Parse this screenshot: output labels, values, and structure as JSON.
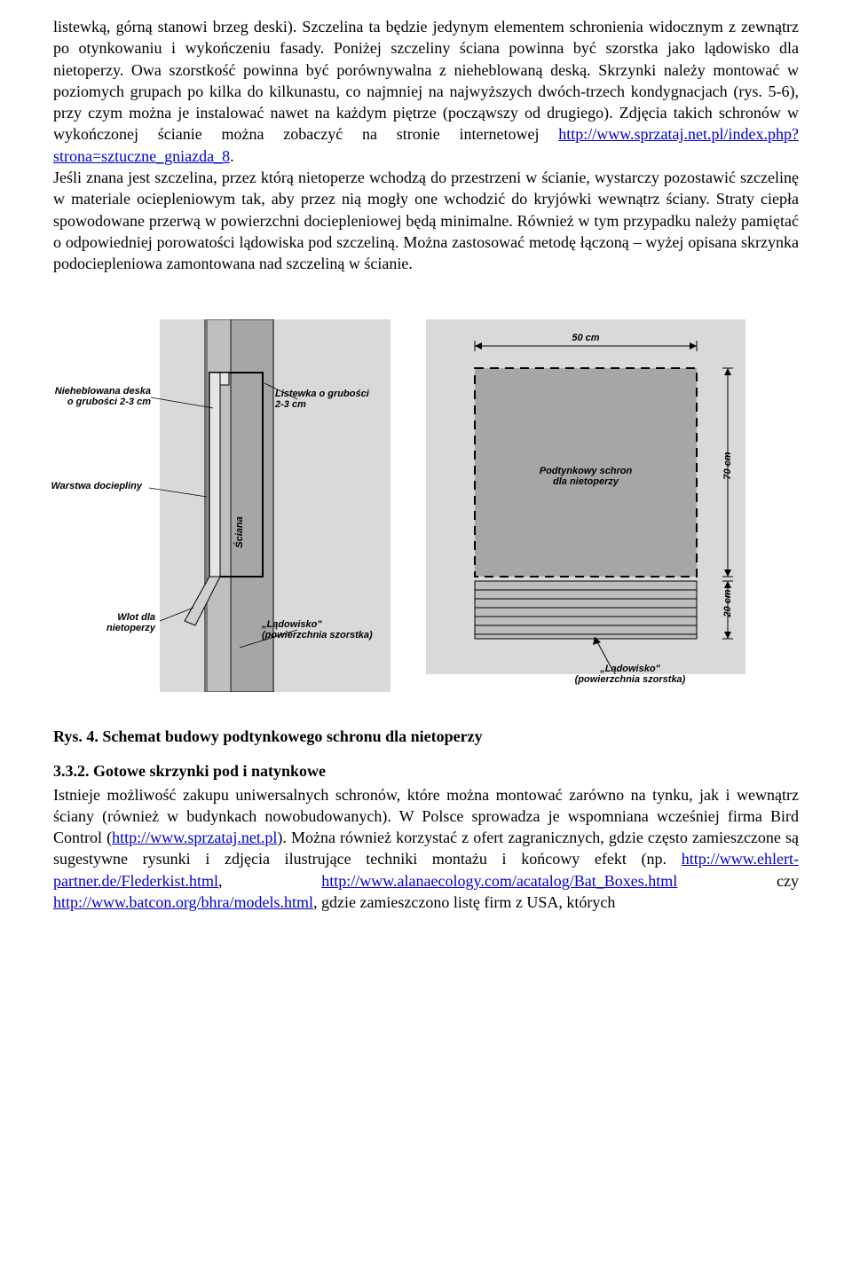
{
  "para1_parts": {
    "t1": "listewką, górną stanowi brzeg deski). Szczelina ta będzie jedynym elementem schronienia widocznym z zewnątrz po otynkowaniu i wykończeniu fasady. Poniżej szczeliny ściana powinna być szorstka jako lądowisko dla nietoperzy. Owa szorstkość powinna być porównywalna z nieheblowaną deską. Skrzynki należy montować w poziomych grupach po kilka do kilkunastu, co najmniej na najwyższych dwóch-trzech kondygnacjach (rys. 5-6), przy czym można je instalować nawet na każdym piętrze (począwszy od drugiego). Zdjęcia takich schronów w wykończonej ścianie można zobaczyć na stronie internetowej ",
    "link1": "http://www.sprzataj.net.pl/index.php?strona=sztuczne_gniazda_8",
    "t2": ".",
    "t3": "Jeśli znana jest szczelina, przez którą nietoperze wchodzą do przestrzeni w ścianie, wystarczy pozostawić szczelinę w materiale ociepleniowym tak, aby przez nią mogły one wchodzić do kryjówki wewnątrz ściany. Straty ciepła spowodowane przerwą w powierzchni dociepleniowej będą minimalne. Również w tym przypadku należy pamiętać o odpowiedniej porowatości lądowiska pod szczeliną. Można zastosować metodę łączoną – wyżej opisana skrzynka podociepleniowa zamontowana nad szczeliną w ścianie."
  },
  "fig_left": {
    "lbl_deska": "Nieheblowana deska\no grubości 2-3 cm",
    "lbl_listewka": "Listewka o grubości\n2-3 cm",
    "lbl_docieplina": "Warstwa dociepliny",
    "lbl_sciana": "Ściana",
    "lbl_wlot": "Wlot dla\nnietoperzy",
    "lbl_ladowisko": "„Lądowisko\"\n(powierzchnia szorstka)"
  },
  "fig_right": {
    "dim_top": "50 cm",
    "dim_right_top": "70 cm",
    "dim_right_bot": "20 cm",
    "lbl_schron": "Podtynkowy schron\ndla nietoperzy",
    "lbl_ladowisko": "„Lądowisko\"\n(powierzchnia szorstka)",
    "bg_color": "#d9d9d9",
    "schron_color": "#a6a6a6",
    "ladowisko_color": "#bdbdbd"
  },
  "caption": "Rys. 4. Schemat budowy podtynkowego schronu dla nietoperzy",
  "section_title": "3.3.2. Gotowe skrzynki pod i natynkowe",
  "para2_parts": {
    "t1": "Istnieje możliwość zakupu uniwersalnych schronów, które można montować zarówno na tynku, jak i wewnątrz ściany (również w budynkach nowobudowanych). W Polsce sprowadza je wspomniana wcześniej firma Bird Control (",
    "link1": "http://www.sprzataj.net.pl",
    "t2": "). Można również korzystać z ofert zagranicznych, gdzie często zamieszczone są sugestywne rysunki i zdjęcia ilustrujące techniki montażu i końcowy efekt (np. ",
    "link2": "http://www.ehlert-partner.de/Flederkist.html",
    "t3": ", ",
    "link3": "http://www.alanaecology.com/acatalog/Bat_Boxes.html",
    "t4": " czy ",
    "link4": "http://www.batcon.org/bhra/models.html",
    "t5": ", gdzie zamieszczono listę firm z USA, których"
  }
}
